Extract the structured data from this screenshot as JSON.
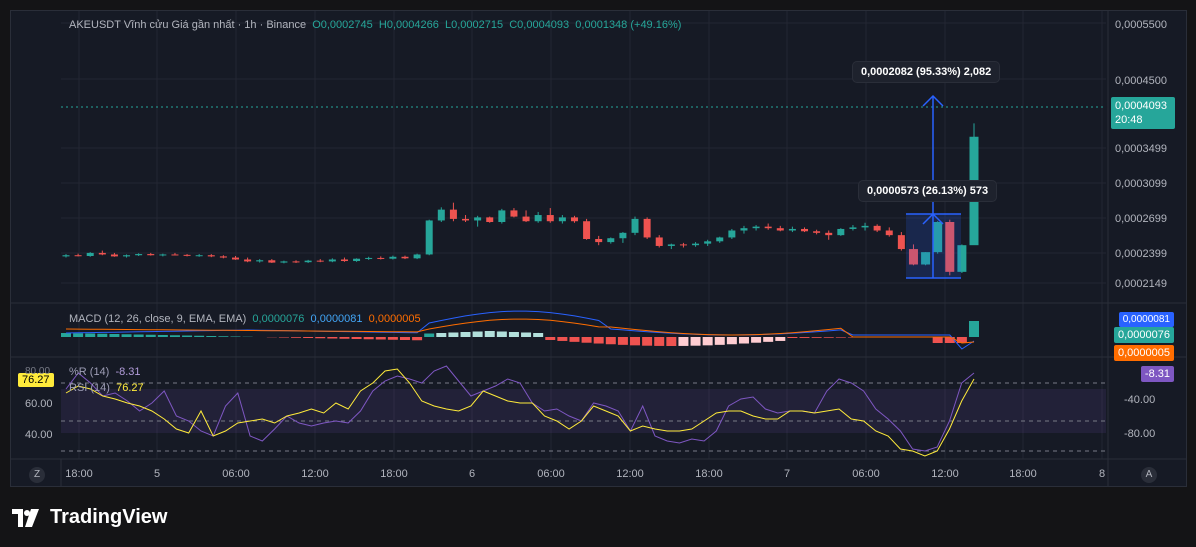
{
  "legend": {
    "symbol": "AKEUSDT Vĩnh cửu Giá gần nhất · 1h · Binance",
    "o": "O0,0002745",
    "h": "H0,0004266",
    "l": "L0,0002715",
    "c": "C0,0004093",
    "chg": "0,0001348 (+49.16%)"
  },
  "price_axis": [
    "0,0005500",
    "0,0004500",
    "0,0003499",
    "0,0003099",
    "0,0002699",
    "0,0002399",
    "0,0002149"
  ],
  "last_price": {
    "value": "0,0004093",
    "timer": "20:48"
  },
  "measure_top": "0,0002082 (95.33%) 2,082",
  "measure_mid": "0,0000573 (26.13%) 573",
  "macd": {
    "label": "MACD (12, 26, close, 9, EMA, EMA)",
    "hist": "0,0000076",
    "macd": "0,0000081",
    "signal": "0,0000005",
    "axis_hist": "0,0000076",
    "axis_signal": "0,0000005",
    "axis_top": "0,0000081"
  },
  "osc": {
    "wr_label": "%R (14)",
    "wr_value": "-8.31",
    "rsi_label": "RSI (14)",
    "rsi_value": "76.27",
    "left_axis": [
      "60.00",
      "40.00"
    ],
    "right_axis": [
      "-40.00",
      "-80.00"
    ],
    "left_top": "80.00"
  },
  "time_axis": [
    "18:00",
    "5",
    "06:00",
    "12:00",
    "18:00",
    "6",
    "06:00",
    "12:00",
    "18:00",
    "7",
    "06:00",
    "12:00",
    "18:00",
    "8"
  ],
  "brand": "TradingView",
  "colors": {
    "up": "#26a69a",
    "down": "#ef5350",
    "bg": "#161a25"
  }
}
